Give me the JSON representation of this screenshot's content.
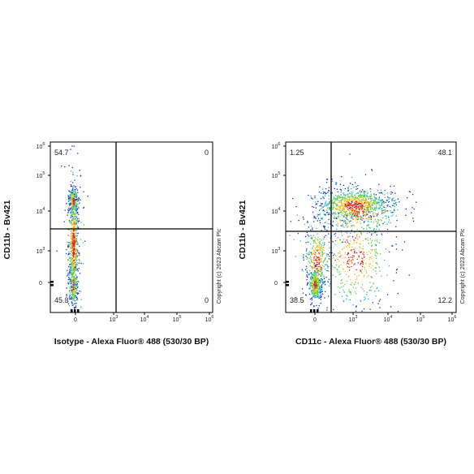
{
  "panels": [
    {
      "y_label": "CD11b - Bv421",
      "x_label": "Isotype - Alexa Fluor® 488 (530/30 BP)",
      "quadrants": {
        "top_left": "54.7",
        "top_right": "0",
        "bottom_left": "45.3",
        "bottom_right": "0"
      },
      "copyright": "Copyright (c) 2023 Abcam Plc",
      "yticks": [
        {
          "text": "0"
        },
        {
          "text": "10",
          "sup": "3"
        },
        {
          "text": "10",
          "sup": "4"
        },
        {
          "text": "10",
          "sup": "5"
        },
        {
          "text": "10",
          "sup": "6"
        }
      ],
      "xticks": [
        {
          "text": "0"
        },
        {
          "text": "10",
          "sup": "3"
        },
        {
          "text": "10",
          "sup": "4"
        },
        {
          "text": "10",
          "sup": "5"
        },
        {
          "text": "10",
          "sup": "6"
        }
      ]
    },
    {
      "y_label": "CD11b - Bv421",
      "x_label": "CD11c - Alexa Fluor® 488 (530/30 BP)",
      "quadrants": {
        "top_left": "1.25",
        "top_right": "48.1",
        "bottom_left": "38.5",
        "bottom_right": "12.2"
      },
      "copyright": "Copyright (c) 2023 Abcam Plc",
      "yticks": [
        {
          "text": "0"
        },
        {
          "text": "10",
          "sup": "3"
        },
        {
          "text": "10",
          "sup": "4"
        },
        {
          "text": "10",
          "sup": "5"
        },
        {
          "text": "10",
          "sup": "6"
        }
      ],
      "xticks": [
        {
          "text": "0"
        },
        {
          "text": "10",
          "sup": "3"
        },
        {
          "text": "10",
          "sup": "4"
        },
        {
          "text": "10",
          "sup": "5"
        },
        {
          "text": "10",
          "sup": "6"
        }
      ]
    }
  ]
}
